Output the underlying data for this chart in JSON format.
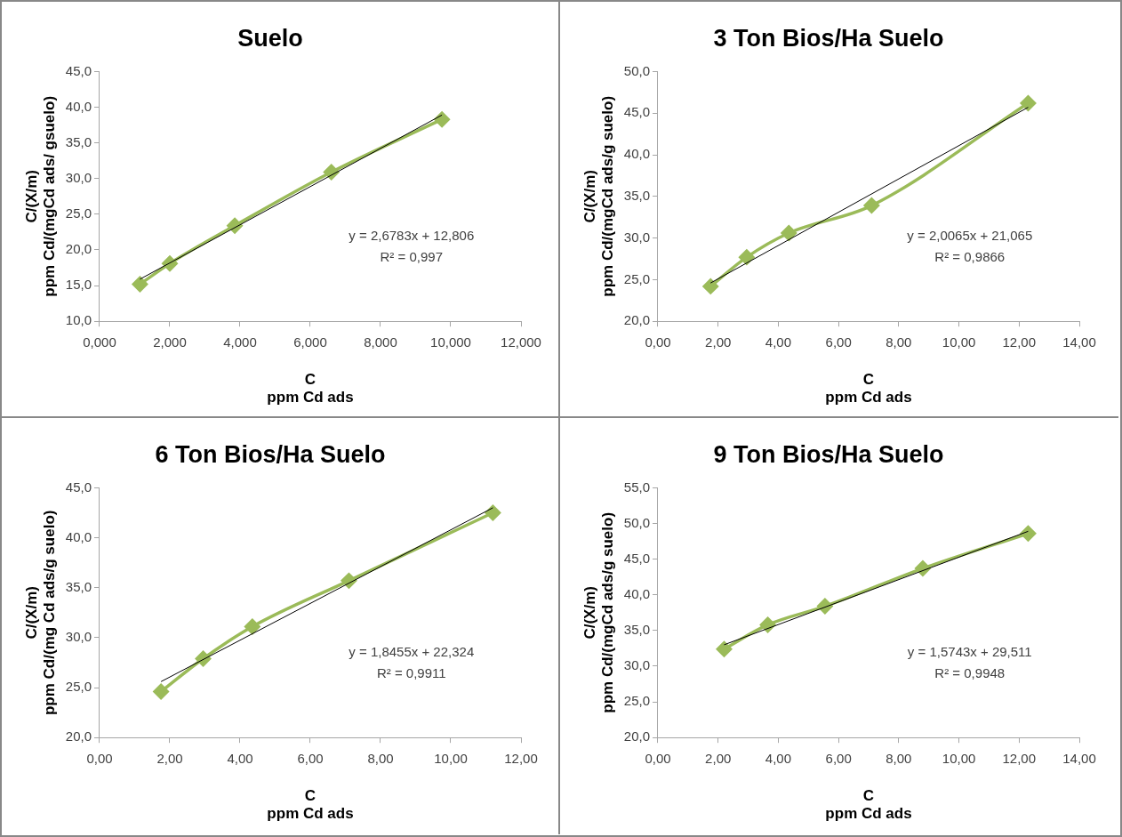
{
  "chart_data": [
    {
      "type": "line",
      "title": "Suelo",
      "xlabel": "C\nppm Cd ads",
      "ylabel": "C/(X/m)\nppm Cd/(mgCd ads/ gsuelo)",
      "legend": false,
      "grid": false,
      "marker": "diamond",
      "xlim": [
        0,
        12
      ],
      "xticks": [
        {
          "value": 0,
          "label": "0,000"
        },
        {
          "value": 2,
          "label": "2,000"
        },
        {
          "value": 4,
          "label": "4,000"
        },
        {
          "value": 6,
          "label": "6,000"
        },
        {
          "value": 8,
          "label": "8,000"
        },
        {
          "value": 10,
          "label": "10,000"
        },
        {
          "value": 12,
          "label": "12,000"
        }
      ],
      "ylim": [
        10,
        45
      ],
      "yticks": [
        {
          "value": 10,
          "label": "10,0"
        },
        {
          "value": 15,
          "label": "15,0"
        },
        {
          "value": 20,
          "label": "20,0"
        },
        {
          "value": 25,
          "label": "25,0"
        },
        {
          "value": 30,
          "label": "30,0"
        },
        {
          "value": 35,
          "label": "35,0"
        },
        {
          "value": 40,
          "label": "40,0"
        },
        {
          "value": 45,
          "label": "45,0"
        }
      ],
      "series": [
        {
          "type": "line",
          "color": "#9bbb59",
          "x": [
            1.15,
            2.0,
            3.85,
            6.6,
            9.75
          ],
          "values": [
            15.2,
            18.1,
            23.4,
            30.9,
            38.3
          ]
        },
        {
          "type": "line",
          "color": "#000000",
          "marker": "none",
          "x": [
            1.15,
            9.75
          ],
          "values": [
            15.9,
            38.9
          ]
        }
      ],
      "annotations": [
        "y = 2,6783x + 12,806",
        "R² = 0,997"
      ]
    },
    {
      "type": "line",
      "title": "3 Ton Bios/Ha Suelo",
      "xlabel": "C\nppm Cd ads",
      "ylabel": "C/(X/m)\nppm Cd/(mgCd ads/g suelo)",
      "legend": false,
      "grid": false,
      "marker": "diamond",
      "xlim": [
        0,
        14
      ],
      "xticks": [
        {
          "value": 0,
          "label": "0,00"
        },
        {
          "value": 2,
          "label": "2,00"
        },
        {
          "value": 4,
          "label": "4,00"
        },
        {
          "value": 6,
          "label": "6,00"
        },
        {
          "value": 8,
          "label": "8,00"
        },
        {
          "value": 10,
          "label": "10,00"
        },
        {
          "value": 12,
          "label": "12,00"
        },
        {
          "value": 14,
          "label": "14,00"
        }
      ],
      "ylim": [
        20,
        50
      ],
      "yticks": [
        {
          "value": 20,
          "label": "20,0"
        },
        {
          "value": 25,
          "label": "25,0"
        },
        {
          "value": 30,
          "label": "30,0"
        },
        {
          "value": 35,
          "label": "35,0"
        },
        {
          "value": 40,
          "label": "40,0"
        },
        {
          "value": 45,
          "label": "45,0"
        },
        {
          "value": 50,
          "label": "50,0"
        }
      ],
      "series": [
        {
          "type": "line",
          "color": "#9bbb59",
          "x": [
            1.75,
            2.95,
            4.35,
            7.1,
            12.3
          ],
          "values": [
            24.2,
            27.7,
            30.6,
            33.9,
            46.2
          ]
        },
        {
          "type": "line",
          "color": "#000000",
          "marker": "none",
          "x": [
            1.75,
            12.3
          ],
          "values": [
            24.6,
            45.7
          ]
        }
      ],
      "annotations": [
        "y = 2,0065x + 21,065",
        "R² = 0,9866"
      ]
    },
    {
      "type": "line",
      "title": "6 Ton Bios/Ha Suelo",
      "xlabel": "C\nppm Cd ads",
      "ylabel": "C/(X/m)\nppm Cd/(mg Cd ads/g suelo)",
      "legend": false,
      "grid": false,
      "marker": "diamond",
      "xlim": [
        0,
        12
      ],
      "xticks": [
        {
          "value": 0,
          "label": "0,00"
        },
        {
          "value": 2,
          "label": "2,00"
        },
        {
          "value": 4,
          "label": "4,00"
        },
        {
          "value": 6,
          "label": "6,00"
        },
        {
          "value": 8,
          "label": "8,00"
        },
        {
          "value": 10,
          "label": "10,00"
        },
        {
          "value": 12,
          "label": "12,00"
        }
      ],
      "ylim": [
        20,
        45
      ],
      "yticks": [
        {
          "value": 20,
          "label": "20,0"
        },
        {
          "value": 25,
          "label": "25,0"
        },
        {
          "value": 30,
          "label": "30,0"
        },
        {
          "value": 35,
          "label": "35,0"
        },
        {
          "value": 40,
          "label": "40,0"
        },
        {
          "value": 45,
          "label": "45,0"
        }
      ],
      "series": [
        {
          "type": "line",
          "color": "#9bbb59",
          "x": [
            1.75,
            2.95,
            4.35,
            7.1,
            11.2
          ],
          "values": [
            24.6,
            27.9,
            31.1,
            35.7,
            42.5
          ]
        },
        {
          "type": "line",
          "color": "#000000",
          "marker": "none",
          "x": [
            1.75,
            11.2
          ],
          "values": [
            25.6,
            43.0
          ]
        }
      ],
      "annotations": [
        "y = 1,8455x + 22,324",
        "R² = 0,9911"
      ]
    },
    {
      "type": "line",
      "title": "9 Ton Bios/Ha Suelo",
      "xlabel": "C\nppm Cd ads",
      "ylabel": "C/(X/m)\nppm Cd/(mgCd ads/g suelo)",
      "legend": false,
      "grid": false,
      "marker": "diamond",
      "xlim": [
        0,
        14
      ],
      "xticks": [
        {
          "value": 0,
          "label": "0,00"
        },
        {
          "value": 2,
          "label": "2,00"
        },
        {
          "value": 4,
          "label": "4,00"
        },
        {
          "value": 6,
          "label": "6,00"
        },
        {
          "value": 8,
          "label": "8,00"
        },
        {
          "value": 10,
          "label": "10,00"
        },
        {
          "value": 12,
          "label": "12,00"
        },
        {
          "value": 14,
          "label": "14,00"
        }
      ],
      "ylim": [
        20,
        55
      ],
      "yticks": [
        {
          "value": 20,
          "label": "20,0"
        },
        {
          "value": 25,
          "label": "25,0"
        },
        {
          "value": 30,
          "label": "30,0"
        },
        {
          "value": 35,
          "label": "35,0"
        },
        {
          "value": 40,
          "label": "40,0"
        },
        {
          "value": 45,
          "label": "45,0"
        },
        {
          "value": 50,
          "label": "50,0"
        },
        {
          "value": 55,
          "label": "55,0"
        }
      ],
      "series": [
        {
          "type": "line",
          "color": "#9bbb59",
          "x": [
            2.2,
            3.65,
            5.55,
            8.8,
            12.3
          ],
          "values": [
            32.4,
            35.8,
            38.4,
            43.7,
            48.6
          ]
        },
        {
          "type": "line",
          "color": "#000000",
          "marker": "none",
          "x": [
            2.2,
            12.3
          ],
          "values": [
            33.0,
            48.9
          ]
        }
      ],
      "annotations": [
        "y = 1,5743x + 29,511",
        "R² = 0,9948"
      ]
    }
  ]
}
